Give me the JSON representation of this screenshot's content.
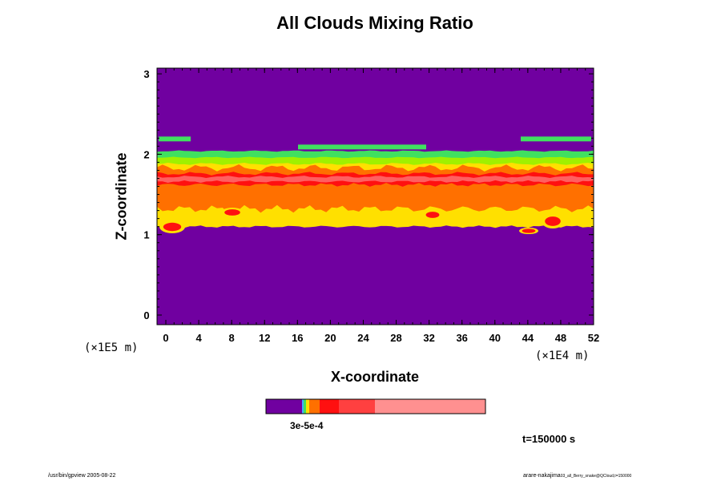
{
  "chart_data": {
    "type": "heatmap",
    "title": "All Clouds Mixing Ratio",
    "xlabel": "X-coordinate",
    "ylabel": "Z-coordinate",
    "x_ticks": [
      "0",
      "4",
      "8",
      "12",
      "16",
      "20",
      "24",
      "28",
      "32",
      "36",
      "40",
      "44",
      "48",
      "52"
    ],
    "y_ticks": [
      "0",
      "1",
      "2",
      "3"
    ],
    "xlim": [
      0,
      52
    ],
    "ylim": [
      0,
      3
    ],
    "x_unit": "(×1E4 m)",
    "y_unit": "(×1E5 m)",
    "layers": [
      {
        "level": "background",
        "z": [
          0,
          3
        ],
        "color": "#7000a0"
      },
      {
        "level": "green top",
        "z": [
          1.98,
          2.04
        ],
        "color": "#40e060"
      },
      {
        "level": "yellow-green",
        "z": [
          1.86,
          1.98
        ],
        "color": "#a0f000"
      },
      {
        "level": "yellow",
        "z": [
          1.8,
          1.86
        ],
        "color": "#ffe000"
      },
      {
        "level": "orange",
        "z": [
          1.3,
          1.8
        ],
        "color": "#ff7000"
      },
      {
        "level": "red",
        "z": [
          1.62,
          1.75
        ],
        "color": "#ff1010"
      },
      {
        "level": "light red",
        "z": [
          1.65,
          1.72
        ],
        "color": "#ff6060"
      }
    ],
    "colorbar": {
      "colors": [
        "#7000a0",
        "#40b0ff",
        "#40e060",
        "#ffe000",
        "#ff7000",
        "#ff1010",
        "#ff4040",
        "#ff9090"
      ],
      "label": "3e-5e-4"
    },
    "annotations": [
      "t=150000 s"
    ]
  },
  "footer": {
    "left": "/usr/bin/gpview 2005-08-22",
    "right_main": "arare-nakajima",
    "right_small": "03_all_Berry_snake@QCloud,t=150000"
  }
}
